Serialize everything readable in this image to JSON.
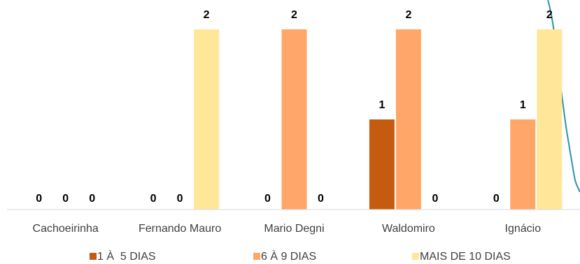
{
  "chart_data": {
    "type": "bar",
    "categories": [
      "Cachoeirinha",
      "Fernando Mauro",
      "Mario Degni",
      "Waldomiro",
      "Ignácio"
    ],
    "series": [
      {
        "name": "1 À  5 DIAS",
        "values": [
          0,
          0,
          0,
          1,
          0
        ],
        "color": "#C55A11"
      },
      {
        "name": "6 À 9 DIAS",
        "values": [
          0,
          0,
          2,
          2,
          1
        ],
        "color": "#FFA668"
      },
      {
        "name": "MAIS DE 10 DIAS",
        "values": [
          0,
          2,
          0,
          0,
          2
        ],
        "color": "#FFE699"
      }
    ],
    "ylim": [
      0,
      2.3
    ],
    "grid": false,
    "legend_position": "bottom",
    "axis_color": "#D9D9D9",
    "overlay_line_color": "#2E93A8"
  }
}
